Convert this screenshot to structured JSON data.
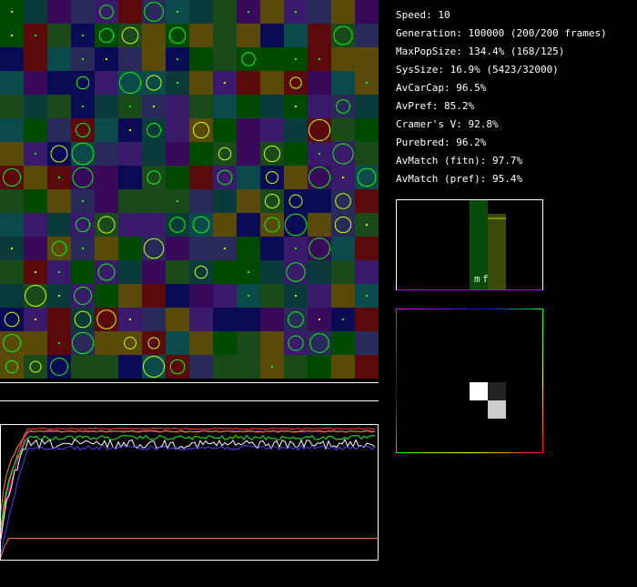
{
  "stats": [
    "Speed: 10",
    "Generation: 100000 (200/200 frames)",
    "MaxPopSize: 134.4% (168/125)",
    "SysSize: 16.9% (5423/32000)",
    "AvCarCap: 96.5%",
    "AvPref: 85.2%",
    "Cramer's V: 92.8%",
    "Purebred: 96.2%",
    "AvMatch (fitn): 97.7%",
    "AvMatch (pref): 95.4%"
  ],
  "sex_panel": {
    "labels": [
      "m",
      "f"
    ]
  }
}
